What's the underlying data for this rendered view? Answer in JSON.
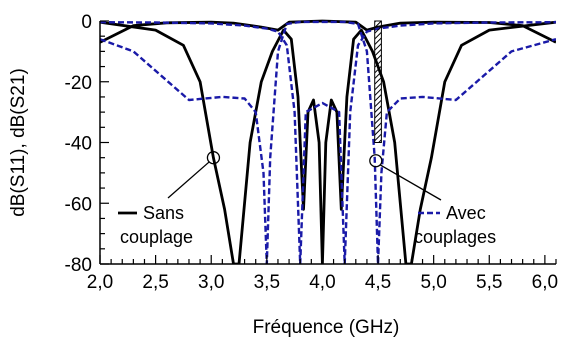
{
  "chart_data": {
    "type": "line",
    "xlabel": "Fréquence (GHz)",
    "ylabel": "dB(S11), dB(S21)",
    "xlim": [
      2.0,
      6.1
    ],
    "ylim": [
      -80,
      0
    ],
    "x_ticks": [
      "2,0",
      "2,5",
      "3,0",
      "3,5",
      "4,0",
      "4,5",
      "5,0",
      "5,5",
      "6,0"
    ],
    "y_ticks": [
      "0",
      "-20",
      "-40",
      "-60",
      "-80"
    ],
    "grid": false,
    "legend": [
      {
        "label": "Sans couplage",
        "line1": "Sans",
        "line2": "couplage",
        "style": "solid",
        "color": "#000000"
      },
      {
        "label": "Avec couplages",
        "line1": "Avec",
        "line2": "couplages",
        "style": "dashed",
        "color": "#1a1aa8"
      }
    ],
    "series": [
      {
        "name": "Sans couplage (S21)",
        "color": "#000000",
        "style": "solid",
        "points": [
          [
            2.0,
            -7
          ],
          [
            2.3,
            -1.5
          ],
          [
            2.6,
            -0.6
          ],
          [
            3.0,
            -0.4
          ],
          [
            3.2,
            -0.7
          ],
          [
            3.45,
            -2
          ],
          [
            3.6,
            -3
          ],
          [
            3.7,
            -0.4
          ],
          [
            4.0,
            0
          ],
          [
            4.3,
            -0.4
          ],
          [
            4.4,
            -3
          ],
          [
            4.5,
            -2
          ],
          [
            4.7,
            -0.7
          ],
          [
            5.0,
            -0.4
          ],
          [
            5.5,
            -0.5
          ],
          [
            5.8,
            -1.5
          ],
          [
            6.1,
            -7
          ]
        ]
      },
      {
        "name": "Sans couplage (S11)",
        "color": "#000000",
        "style": "solid",
        "points": [
          [
            2.0,
            -0.4
          ],
          [
            2.5,
            -3
          ],
          [
            2.75,
            -8
          ],
          [
            2.9,
            -20
          ],
          [
            3.02,
            -45
          ],
          [
            3.12,
            -62
          ],
          [
            3.2,
            -80
          ],
          [
            3.25,
            -80
          ],
          [
            3.35,
            -40
          ],
          [
            3.45,
            -20
          ],
          [
            3.55,
            -10
          ],
          [
            3.65,
            -3
          ],
          [
            3.72,
            -6
          ],
          [
            3.78,
            -25
          ],
          [
            3.83,
            -62
          ],
          [
            3.87,
            -30
          ],
          [
            3.92,
            -26
          ],
          [
            3.97,
            -40
          ],
          [
            4.0,
            -80
          ],
          [
            4.03,
            -40
          ],
          [
            4.08,
            -26
          ],
          [
            4.13,
            -30
          ],
          [
            4.17,
            -62
          ],
          [
            4.22,
            -25
          ],
          [
            4.28,
            -6
          ],
          [
            4.35,
            -3
          ],
          [
            4.45,
            -10
          ],
          [
            4.55,
            -20
          ],
          [
            4.65,
            -40
          ],
          [
            4.75,
            -80
          ],
          [
            4.8,
            -80
          ],
          [
            4.88,
            -62
          ],
          [
            4.98,
            -45
          ],
          [
            5.1,
            -20
          ],
          [
            5.25,
            -8
          ],
          [
            5.5,
            -3
          ],
          [
            6.1,
            -0.4
          ]
        ]
      },
      {
        "name": "Avec couplages (S21)",
        "color": "#1a1aa8",
        "style": "dashed",
        "points": [
          [
            2.0,
            -6
          ],
          [
            2.3,
            -10
          ],
          [
            2.55,
            -18
          ],
          [
            2.8,
            -26
          ],
          [
            3.1,
            -25
          ],
          [
            3.3,
            -25.5
          ],
          [
            3.4,
            -30
          ],
          [
            3.47,
            -50
          ],
          [
            3.5,
            -80
          ],
          [
            3.53,
            -45
          ],
          [
            3.6,
            -10
          ],
          [
            3.68,
            -1
          ],
          [
            3.8,
            -0.3
          ],
          [
            4.2,
            -0.3
          ],
          [
            4.32,
            -1
          ],
          [
            4.4,
            -10
          ],
          [
            4.47,
            -45
          ],
          [
            4.5,
            -80
          ],
          [
            4.53,
            -50
          ],
          [
            4.58,
            -30
          ],
          [
            4.7,
            -25.5
          ],
          [
            4.9,
            -25
          ],
          [
            5.2,
            -26
          ],
          [
            5.45,
            -18
          ],
          [
            5.7,
            -10
          ],
          [
            6.1,
            -6
          ]
        ]
      },
      {
        "name": "Avec couplages (S11)",
        "color": "#1a1aa8",
        "style": "dashed",
        "points": [
          [
            2.0,
            -0.4
          ],
          [
            2.5,
            -0.5
          ],
          [
            3.0,
            -0.8
          ],
          [
            3.3,
            -1.5
          ],
          [
            3.5,
            -2.5
          ],
          [
            3.6,
            -3.5
          ],
          [
            3.68,
            -8
          ],
          [
            3.75,
            -30
          ],
          [
            3.8,
            -80
          ],
          [
            3.85,
            -30
          ],
          [
            4.0,
            -27
          ],
          [
            4.15,
            -30
          ],
          [
            4.2,
            -80
          ],
          [
            4.25,
            -30
          ],
          [
            4.32,
            -8
          ],
          [
            4.4,
            -3.5
          ],
          [
            4.5,
            -2.5
          ],
          [
            4.7,
            -1.5
          ],
          [
            5.0,
            -0.8
          ],
          [
            5.5,
            -0.5
          ],
          [
            6.1,
            -0.4
          ]
        ]
      }
    ],
    "annotations": [
      {
        "type": "circle",
        "x": 3.02,
        "y": -45,
        "label": "Sans couplage"
      },
      {
        "type": "circle",
        "x": 4.48,
        "y": -46,
        "label": "Avec couplages"
      },
      {
        "type": "hatched-band",
        "x0": 4.47,
        "x1": 4.53,
        "y0": 0,
        "y1": -40
      }
    ]
  }
}
